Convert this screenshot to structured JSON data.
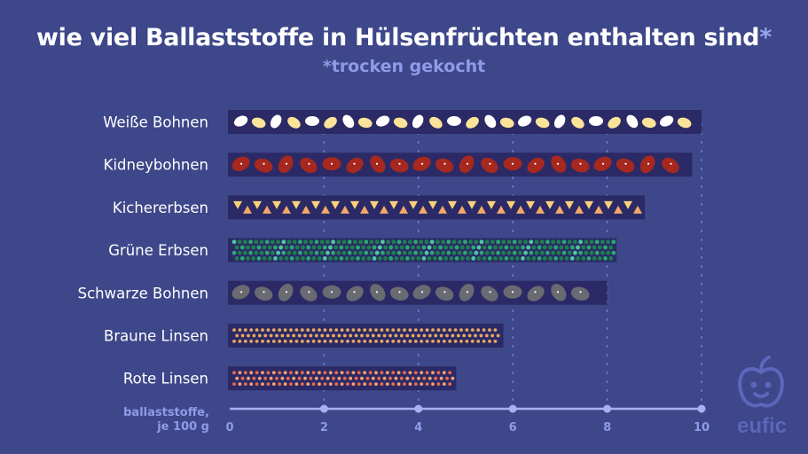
{
  "title": "wie viel Ballaststoffe in Hülsenfrüchten enthalten sind",
  "title_mark": "*",
  "subtitle": "*trocken gekocht",
  "logo": {
    "text": "eufic",
    "icon": "apple-face-icon",
    "color": "#5b66bc"
  },
  "colors": {
    "background": "#3d4789",
    "bar": "#2b2a66",
    "axis": "#a7b1f2",
    "gridline": "#6a76c9",
    "label": "#ffffff",
    "axis_label": "#8f9be8"
  },
  "chart_data": {
    "type": "bar",
    "orientation": "horizontal",
    "title": "wie viel Ballaststoffe in Hülsenfrüchten enthalten sind*",
    "subtitle": "*trocken gekocht",
    "xlabel_lines": [
      "ballaststoffe,",
      "je 100 g"
    ],
    "xlim": [
      0,
      10
    ],
    "xticks": [
      0,
      2,
      4,
      6,
      8,
      10
    ],
    "grid": true,
    "categories": [
      "Weiße Bohnen",
      "Kidneybohnen",
      "Kichererbsen",
      "Grüne Erbsen",
      "Schwarze Bohnen",
      "Braune Linsen",
      "Rote Linsen"
    ],
    "values": [
      10.0,
      9.8,
      8.8,
      8.2,
      8.0,
      5.8,
      4.8
    ],
    "patterns": [
      {
        "kind": "white-beans",
        "colors": [
          "#ffffff",
          "#fbe39a"
        ]
      },
      {
        "kind": "kidney-beans",
        "colors": [
          "#a7281e"
        ]
      },
      {
        "kind": "chickpeas",
        "colors": [
          "#fbd27a",
          "#f4a86a"
        ]
      },
      {
        "kind": "green-peas",
        "colors": [
          "#1e7f4e",
          "#2aa873",
          "#4fc7a4"
        ]
      },
      {
        "kind": "black-beans",
        "colors": [
          "#6a6a72"
        ]
      },
      {
        "kind": "brown-lentils",
        "colors": [
          "#e9a860"
        ]
      },
      {
        "kind": "red-lentils",
        "colors": [
          "#ef6a4c",
          "#f7a46e"
        ]
      }
    ]
  }
}
